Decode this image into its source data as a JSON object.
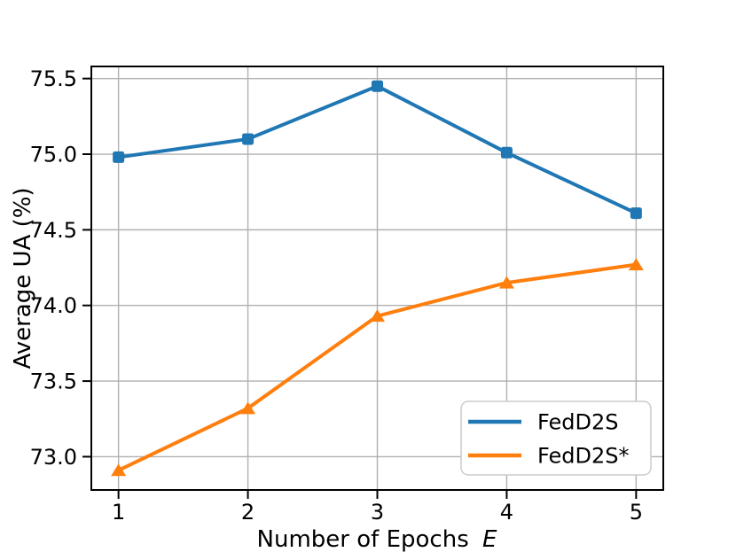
{
  "figure": {
    "background": "#ffffff"
  },
  "chart_data": {
    "type": "line",
    "title": "",
    "xlabel": "Number of Epochs E",
    "ylabel": "Average UA (%)",
    "x": [
      1,
      2,
      3,
      4,
      5
    ],
    "series": [
      {
        "id": "fedd2s",
        "name": "FedD2S",
        "color": "#1f77b4",
        "marker": "square",
        "values": [
          74.98,
          75.1,
          75.45,
          75.01,
          74.61
        ]
      },
      {
        "id": "fedd2s-star",
        "name": "FedD2S*",
        "color": "#ff7f0e",
        "marker": "triangle-up",
        "values": [
          72.91,
          73.32,
          73.93,
          74.15,
          74.27
        ]
      }
    ],
    "xlim": [
      0.79,
      5.21
    ],
    "ylim": [
      72.78,
      75.58
    ],
    "xticks": {
      "values": [
        1,
        2,
        3,
        4,
        5
      ],
      "labels": [
        "1",
        "2",
        "3",
        "4",
        "5"
      ]
    },
    "yticks": {
      "values": [
        73.0,
        73.5,
        74.0,
        74.5,
        75.0,
        75.5
      ],
      "labels": [
        "73.0",
        "73.5",
        "74.0",
        "74.5",
        "75.0",
        "75.5"
      ]
    },
    "grid": true,
    "legend": {
      "position": "lower right",
      "entries": [
        "FedD2S",
        "FedD2S*"
      ]
    }
  },
  "labels": {
    "ylabel": "Average UA (%)",
    "xlabel_prefix": "Number of Epochs",
    "xlabel_symbol": "E",
    "legend_item_1": "FedD2S",
    "legend_item_2": "FedD2S*"
  },
  "colors": {
    "series_blue": "#1f77b4",
    "series_orange": "#ff7f0e",
    "grid": "#b0b0b0",
    "spine": "#000000",
    "text": "#000000",
    "legend_border": "#cccccc",
    "legend_bg": "#ffffff"
  }
}
